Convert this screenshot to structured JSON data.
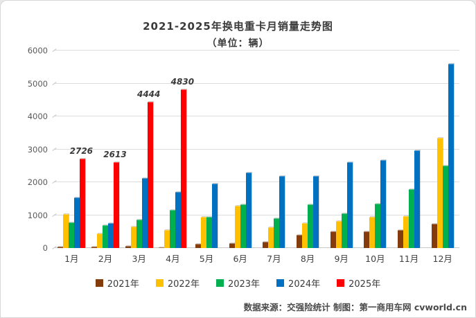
{
  "header": {
    "title": "2021-2025年换电重卡月销量走势图",
    "subtitle": "（单位：辆）"
  },
  "chart_data": {
    "type": "bar",
    "title": "2021-2025年换电重卡月销量走势图",
    "subtitle": "（单位：辆）",
    "categories": [
      "1月",
      "2月",
      "3月",
      "4月",
      "5月",
      "6月",
      "7月",
      "8月",
      "9月",
      "10月",
      "11月",
      "12月"
    ],
    "series": [
      {
        "name": "2021年",
        "color": "#843C0C",
        "show_labels": false,
        "values": [
          50,
          40,
          70,
          30,
          130,
          140,
          180,
          390,
          500,
          500,
          550,
          730
        ]
      },
      {
        "name": "2022年",
        "color": "#FFC000",
        "show_labels": false,
        "values": [
          1030,
          440,
          650,
          540,
          950,
          1290,
          630,
          760,
          830,
          950,
          960,
          3350
        ]
      },
      {
        "name": "2023年",
        "color": "#00B050",
        "show_labels": false,
        "values": [
          770,
          700,
          860,
          1150,
          950,
          1320,
          900,
          1330,
          1060,
          1350,
          1800,
          2510
        ]
      },
      {
        "name": "2024年",
        "color": "#0070C0",
        "show_labels": false,
        "values": [
          1540,
          750,
          2130,
          1700,
          1950,
          2300,
          2180,
          2200,
          2610,
          2680,
          2970,
          5600
        ]
      },
      {
        "name": "2025年",
        "color": "#FF0000",
        "show_labels": true,
        "values": [
          2726,
          2613,
          4444,
          4830,
          null,
          null,
          null,
          null,
          null,
          null,
          null,
          null
        ]
      }
    ],
    "data_labels": [
      "2726",
      "2613",
      "4444",
      "4830"
    ],
    "ylim": [
      0,
      6000
    ],
    "yticks": [
      0,
      1000,
      2000,
      3000,
      4000,
      5000,
      6000
    ],
    "grid": true,
    "legend_position": "bottom",
    "colors": {
      "gridline": "#dcdcdc",
      "axis_text": "#595959",
      "title_text": "#3a3a3a"
    }
  },
  "footer": {
    "text": "数据来源：交强险统计 制图：第一商用车网 cvworld.cn"
  }
}
